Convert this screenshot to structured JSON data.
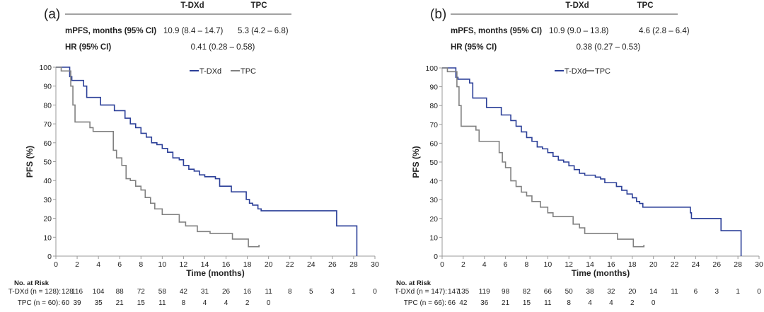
{
  "colors": {
    "tdxd": "#2b3f98",
    "tpc": "#808080",
    "axis": "#999999"
  },
  "chart_data": [
    {
      "type": "line",
      "panel_label": "(a)",
      "summary_table": {
        "headers": [
          "T-DXd",
          "TPC"
        ],
        "rows": [
          {
            "label": "mPFS, months (95% CI)",
            "values": [
              "10.9 (8.4 – 14.7)",
              "5.3 (4.2 – 6.8)"
            ]
          },
          {
            "label": "HR (95% CI)",
            "values": [
              "0.41 (0.28 – 0.58)"
            ]
          }
        ]
      },
      "xlabel": "Time (months)",
      "ylabel": "PFS (%)",
      "xlim": [
        0,
        30
      ],
      "ylim": [
        0,
        100
      ],
      "xticks": [
        "0",
        "2",
        "4",
        "6",
        "8",
        "10",
        "12",
        "14",
        "16",
        "18",
        "20",
        "22",
        "24",
        "26",
        "28",
        "30"
      ],
      "yticks": [
        "0",
        "10",
        "20",
        "30",
        "40",
        "50",
        "60",
        "70",
        "80",
        "90",
        "100"
      ],
      "legend": {
        "placement": "top-center",
        "entries": [
          "T-DXd",
          "TPC"
        ]
      },
      "series": [
        {
          "name": "T-DXd",
          "step": true,
          "points": [
            [
              0,
              100
            ],
            [
              1.1,
              100
            ],
            [
              1.3,
              95
            ],
            [
              1.5,
              93
            ],
            [
              2.6,
              90
            ],
            [
              2.9,
              84
            ],
            [
              4,
              84
            ],
            [
              4.2,
              80
            ],
            [
              5.2,
              80
            ],
            [
              5.5,
              77
            ],
            [
              6.5,
              73
            ],
            [
              7,
              70
            ],
            [
              7.5,
              68
            ],
            [
              8,
              65
            ],
            [
              8.5,
              63
            ],
            [
              9,
              60
            ],
            [
              9.5,
              59
            ],
            [
              10,
              57
            ],
            [
              10.5,
              55
            ],
            [
              11,
              52
            ],
            [
              11.6,
              51
            ],
            [
              12,
              48
            ],
            [
              12.5,
              46
            ],
            [
              13,
              45
            ],
            [
              13.5,
              43
            ],
            [
              14,
              42
            ],
            [
              15,
              41
            ],
            [
              15.4,
              37
            ],
            [
              16.5,
              34
            ],
            [
              17.9,
              30
            ],
            [
              18.2,
              28
            ],
            [
              18.5,
              27
            ],
            [
              19,
              25
            ],
            [
              19.3,
              24
            ],
            [
              26.3,
              24
            ],
            [
              26.4,
              16
            ],
            [
              28.3,
              16
            ],
            [
              28.3,
              0
            ]
          ]
        },
        {
          "name": "TPC",
          "step": true,
          "points": [
            [
              0,
              100
            ],
            [
              0.5,
              98
            ],
            [
              1.2,
              98
            ],
            [
              1.4,
              90
            ],
            [
              1.6,
              80
            ],
            [
              1.8,
              71
            ],
            [
              2.7,
              71
            ],
            [
              3.2,
              68
            ],
            [
              3.5,
              66
            ],
            [
              5.1,
              66
            ],
            [
              5.4,
              56
            ],
            [
              5.7,
              52
            ],
            [
              6.2,
              48
            ],
            [
              6.6,
              41
            ],
            [
              7,
              40
            ],
            [
              7.5,
              37
            ],
            [
              8,
              35
            ],
            [
              8.4,
              31
            ],
            [
              8.9,
              28
            ],
            [
              9.3,
              25
            ],
            [
              10,
              22
            ],
            [
              11.5,
              22
            ],
            [
              11.6,
              18
            ],
            [
              12.2,
              16
            ],
            [
              13,
              16
            ],
            [
              13.3,
              13
            ],
            [
              14.5,
              12
            ],
            [
              16.5,
              12
            ],
            [
              16.6,
              9
            ],
            [
              18,
              9
            ],
            [
              18.1,
              5
            ],
            [
              19.1,
              5
            ],
            [
              19.1,
              6
            ]
          ]
        }
      ],
      "at_risk": {
        "title": "No. at Risk",
        "rows": [
          {
            "label": "T-DXd (n = 128):",
            "values": [
              "128",
              "116",
              "104",
              "88",
              "72",
              "58",
              "42",
              "31",
              "26",
              "16",
              "11",
              "8",
              "5",
              "3",
              "1",
              "0"
            ]
          },
          {
            "label": "TPC (n = 60):",
            "values": [
              "60",
              "39",
              "35",
              "21",
              "15",
              "11",
              "8",
              "4",
              "4",
              "2",
              "0"
            ]
          }
        ]
      }
    },
    {
      "type": "line",
      "panel_label": "(b)",
      "summary_table": {
        "headers": [
          "T-DXd",
          "TPC"
        ],
        "rows": [
          {
            "label": "mPFS, months (95% CI)",
            "values": [
              "10.9 (9.0 – 13.8)",
              "4.6 (2.8 – 6.4)"
            ]
          },
          {
            "label": "HR (95% CI)",
            "values": [
              "0.38 (0.27 – 0.53)"
            ]
          }
        ]
      },
      "xlabel": "Time (months)",
      "ylabel": "PFS (%)",
      "xlim": [
        0,
        30
      ],
      "ylim": [
        0,
        100
      ],
      "xticks": [
        "0",
        "2",
        "4",
        "6",
        "8",
        "10",
        "12",
        "14",
        "16",
        "18",
        "20",
        "22",
        "24",
        "26",
        "28",
        "30"
      ],
      "yticks": [
        "0",
        "10",
        "20",
        "30",
        "40",
        "50",
        "60",
        "70",
        "80",
        "90",
        "100"
      ],
      "legend": {
        "placement": "top-center",
        "entries": [
          "T-DXd",
          "TPC"
        ]
      },
      "series": [
        {
          "name": "T-DXd",
          "step": true,
          "points": [
            [
              0,
              100
            ],
            [
              1.1,
              100
            ],
            [
              1.3,
              95
            ],
            [
              1.5,
              94
            ],
            [
              2.6,
              92
            ],
            [
              2.9,
              84
            ],
            [
              4,
              84
            ],
            [
              4.2,
              79
            ],
            [
              5.2,
              79
            ],
            [
              5.6,
              75
            ],
            [
              6.5,
              72
            ],
            [
              7,
              69
            ],
            [
              7.5,
              66
            ],
            [
              8,
              63
            ],
            [
              8.5,
              61
            ],
            [
              9,
              58
            ],
            [
              9.5,
              57
            ],
            [
              10,
              55
            ],
            [
              10.5,
              53
            ],
            [
              11,
              51
            ],
            [
              11.5,
              50
            ],
            [
              12,
              48
            ],
            [
              12.5,
              46
            ],
            [
              13,
              44
            ],
            [
              13.5,
              43
            ],
            [
              14.5,
              42
            ],
            [
              15,
              41
            ],
            [
              15.4,
              39
            ],
            [
              16.5,
              37
            ],
            [
              17,
              35
            ],
            [
              17.5,
              33
            ],
            [
              18,
              31
            ],
            [
              18.4,
              29
            ],
            [
              18.7,
              28
            ],
            [
              19,
              26
            ],
            [
              23.3,
              26
            ],
            [
              23.5,
              23
            ],
            [
              23.6,
              20
            ],
            [
              26.3,
              20
            ],
            [
              26.4,
              13.5
            ],
            [
              28.3,
              13.5
            ],
            [
              28.3,
              0
            ]
          ]
        },
        {
          "name": "TPC",
          "step": true,
          "points": [
            [
              0,
              100
            ],
            [
              0.5,
              98
            ],
            [
              1.2,
              98
            ],
            [
              1.4,
              90
            ],
            [
              1.6,
              80
            ],
            [
              1.8,
              69
            ],
            [
              2.7,
              69
            ],
            [
              3.2,
              67
            ],
            [
              3.5,
              61
            ],
            [
              5.1,
              61
            ],
            [
              5.4,
              55
            ],
            [
              5.7,
              50
            ],
            [
              6,
              47
            ],
            [
              6.5,
              40
            ],
            [
              7,
              37
            ],
            [
              7.5,
              34
            ],
            [
              8,
              32
            ],
            [
              8.5,
              29
            ],
            [
              9.3,
              26
            ],
            [
              10,
              23
            ],
            [
              10.5,
              21
            ],
            [
              12,
              21
            ],
            [
              12.4,
              17
            ],
            [
              13,
              15
            ],
            [
              13.5,
              12
            ],
            [
              16.5,
              12
            ],
            [
              16.6,
              9
            ],
            [
              18,
              9
            ],
            [
              18.1,
              5
            ],
            [
              19.1,
              5
            ],
            [
              19.1,
              6
            ]
          ]
        }
      ],
      "at_risk": {
        "title": "No. at Risk",
        "rows": [
          {
            "label": "T-DXd (n = 147):",
            "values": [
              "147",
              "135",
              "119",
              "98",
              "82",
              "66",
              "50",
              "38",
              "32",
              "20",
              "14",
              "11",
              "6",
              "3",
              "1",
              "0"
            ]
          },
          {
            "label": "TPC (n = 66):",
            "values": [
              "66",
              "42",
              "36",
              "21",
              "15",
              "11",
              "8",
              "4",
              "4",
              "2",
              "0"
            ]
          }
        ]
      }
    }
  ]
}
